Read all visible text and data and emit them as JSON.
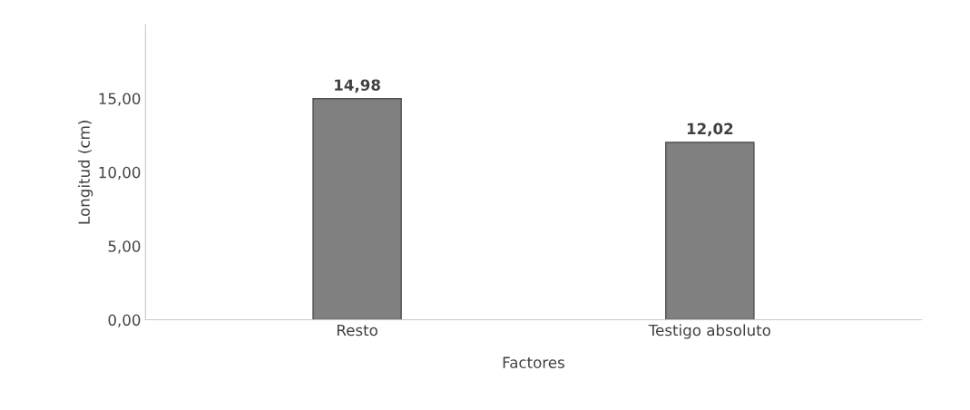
{
  "chart_data": {
    "type": "bar",
    "xlabel": "Factores",
    "ylabel": "Longitud (cm)",
    "categories": [
      "Resto",
      "Testigo absoluto"
    ],
    "values": [
      14.98,
      12.02
    ],
    "color": "#808080",
    "value_labels": [
      "14,98",
      "12,02"
    ],
    "ylim": [
      0,
      20
    ],
    "yticks": [
      {
        "value": 0,
        "label": "0,00"
      },
      {
        "value": 5,
        "label": "5,00"
      },
      {
        "value": 10,
        "label": "10,00"
      },
      {
        "value": 15,
        "label": "15,00"
      }
    ],
    "grid": false
  }
}
